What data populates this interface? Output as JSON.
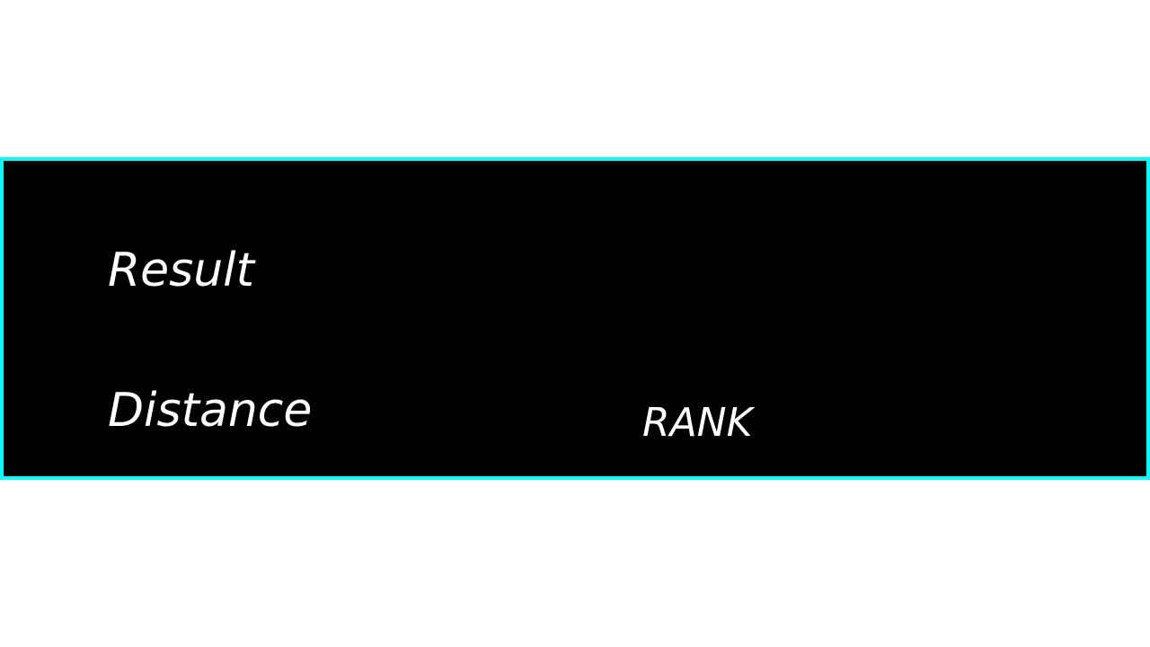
{
  "panel": {
    "border_color": "#00ffff",
    "background_color": "#000000",
    "text_color": "#ffffff"
  },
  "labels": {
    "result": "Result",
    "distance": "Distance",
    "rank": "RANK"
  }
}
